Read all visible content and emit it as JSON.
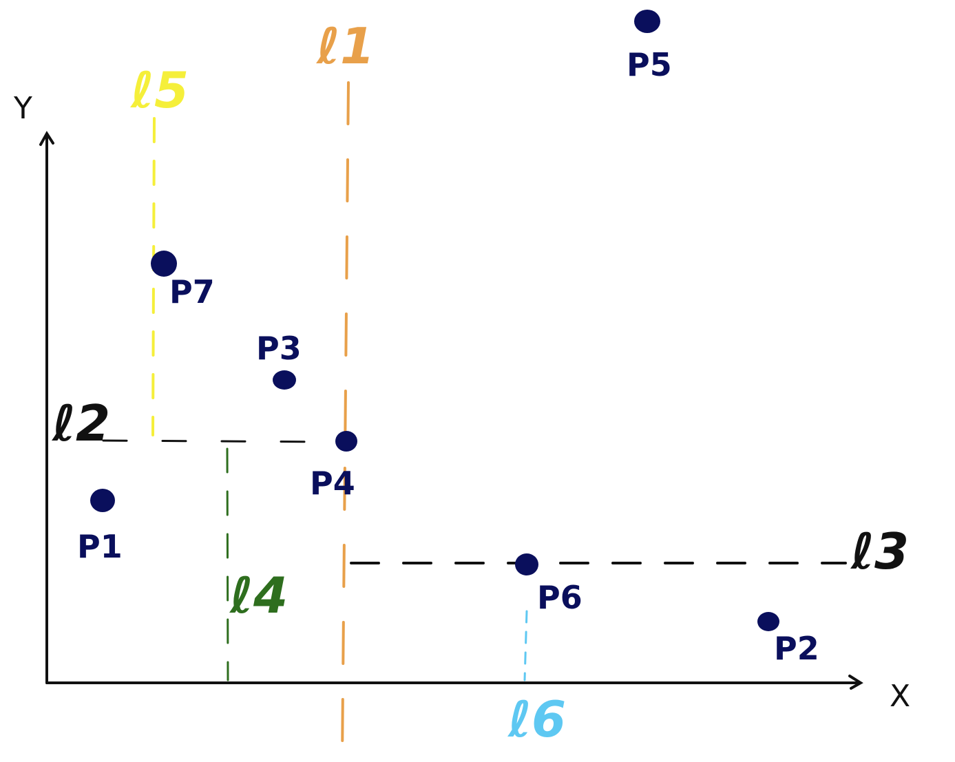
{
  "axes": {
    "x_label": "X",
    "y_label": "Y",
    "color": "#111111"
  },
  "points": [
    {
      "id": "p1",
      "label": "P1"
    },
    {
      "id": "p2",
      "label": "P2"
    },
    {
      "id": "p3",
      "label": "P3"
    },
    {
      "id": "p4",
      "label": "P4"
    },
    {
      "id": "p5",
      "label": "P5"
    },
    {
      "id": "p6",
      "label": "P6"
    },
    {
      "id": "p7",
      "label": "P7"
    }
  ],
  "point_color": "#0a0f5c",
  "lines": [
    {
      "id": "l1",
      "label": "ℓ1",
      "orientation": "vertical",
      "color": "#e8a04a"
    },
    {
      "id": "l2",
      "label": "ℓ2",
      "orientation": "horizontal",
      "color": "#111111"
    },
    {
      "id": "l3",
      "label": "ℓ3",
      "orientation": "horizontal",
      "color": "#111111"
    },
    {
      "id": "l4",
      "label": "ℓ4",
      "orientation": "vertical",
      "color": "#2e6e1e"
    },
    {
      "id": "l5",
      "label": "ℓ5",
      "orientation": "vertical",
      "color": "#f5ef3a"
    },
    {
      "id": "l6",
      "label": "ℓ6",
      "orientation": "vertical",
      "color": "#5ec8f2"
    }
  ]
}
